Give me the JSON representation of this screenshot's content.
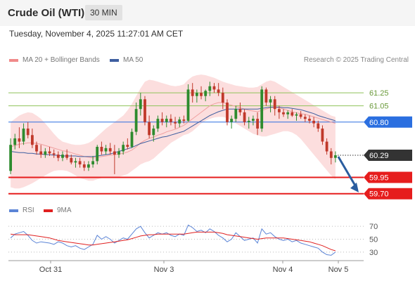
{
  "header": {
    "title": "Crude Oil (WTI)",
    "timeframe": "30 MIN",
    "datetime": "Tuesday, November 4, 2025 11:27:01 AM CET"
  },
  "legend": {
    "ma20": "MA 20 + Bollinger Bands",
    "ma50": "MA 50",
    "rsi": "RSI",
    "ma9": "9MA"
  },
  "credit": "Research © 2025 Trading Central",
  "colors": {
    "up": "#2e8b2e",
    "down": "#c0392b",
    "band": "#fbd3d3",
    "ma20": "#f0a0a0",
    "ma50": "#3e5ea0",
    "resistance": "#8fc25a",
    "pivot": "#2b6fe0",
    "support": "#e61d1d",
    "last": "#333333",
    "arrow": "#2a5d9f",
    "rsi": "#5b84d6",
    "rsi_ma": "#e02020"
  },
  "chart_data": [
    {
      "type": "candlestick",
      "instrument": "Crude Oil (WTI)",
      "interval": "30 MIN",
      "ylim": [
        59.6,
        61.65
      ],
      "x_labels": [
        "Oct 31",
        "Nov 3",
        "Nov 4",
        "Nov 5"
      ],
      "levels": [
        {
          "label": "61.25",
          "value": 61.25,
          "kind": "resistance"
        },
        {
          "label": "61.05",
          "value": 61.05,
          "kind": "resistance"
        },
        {
          "label": "60.80",
          "value": 60.8,
          "kind": "pivot"
        },
        {
          "label": "60.29",
          "value": 60.29,
          "kind": "last"
        },
        {
          "label": "59.95",
          "value": 59.95,
          "kind": "support"
        },
        {
          "label": "59.70",
          "value": 59.7,
          "kind": "support"
        }
      ],
      "ohlc": [
        [
          60.05,
          60.55,
          60.0,
          60.45
        ],
        [
          60.45,
          60.62,
          60.38,
          60.55
        ],
        [
          60.55,
          60.72,
          60.4,
          60.5
        ],
        [
          60.5,
          60.78,
          60.45,
          60.7
        ],
        [
          60.7,
          60.8,
          60.55,
          60.6
        ],
        [
          60.6,
          60.7,
          60.4,
          60.45
        ],
        [
          60.45,
          60.5,
          60.3,
          60.35
        ],
        [
          60.35,
          60.45,
          60.25,
          60.3
        ],
        [
          60.3,
          60.4,
          60.25,
          60.35
        ],
        [
          60.35,
          60.42,
          60.28,
          60.32
        ],
        [
          60.32,
          60.38,
          60.25,
          60.3
        ],
        [
          60.3,
          60.35,
          60.2,
          60.25
        ],
        [
          60.25,
          60.35,
          60.2,
          60.3
        ],
        [
          60.3,
          60.38,
          60.22,
          60.25
        ],
        [
          60.25,
          60.3,
          60.15,
          60.18
        ],
        [
          60.18,
          60.25,
          60.1,
          60.2
        ],
        [
          60.2,
          60.25,
          60.1,
          60.15
        ],
        [
          60.15,
          60.2,
          60.05,
          60.1
        ],
        [
          60.1,
          60.2,
          60.05,
          60.15
        ],
        [
          60.15,
          60.28,
          60.1,
          60.2
        ],
        [
          60.2,
          60.45,
          60.15,
          60.42
        ],
        [
          60.42,
          60.5,
          60.3,
          60.35
        ],
        [
          60.35,
          60.45,
          60.3,
          60.4
        ],
        [
          60.4,
          60.48,
          60.3,
          60.35
        ],
        [
          60.35,
          60.45,
          60.0,
          60.3
        ],
        [
          60.3,
          60.4,
          60.25,
          60.35
        ],
        [
          60.35,
          60.5,
          60.3,
          60.45
        ],
        [
          60.45,
          60.55,
          60.38,
          60.42
        ],
        [
          60.42,
          60.7,
          60.4,
          60.65
        ],
        [
          60.65,
          61.1,
          60.6,
          61.0
        ],
        [
          61.0,
          61.25,
          60.9,
          61.15
        ],
        [
          61.15,
          61.2,
          60.75,
          60.8
        ],
        [
          60.8,
          60.9,
          60.55,
          60.6
        ],
        [
          60.6,
          60.75,
          60.5,
          60.7
        ],
        [
          60.7,
          60.9,
          60.65,
          60.85
        ],
        [
          60.85,
          60.95,
          60.75,
          60.8
        ],
        [
          60.8,
          60.9,
          60.72,
          60.85
        ],
        [
          60.85,
          60.92,
          60.75,
          60.8
        ],
        [
          60.8,
          60.88,
          60.7,
          60.78
        ],
        [
          60.78,
          60.88,
          60.72,
          60.84
        ],
        [
          60.84,
          60.9,
          60.78,
          60.82
        ],
        [
          60.82,
          61.38,
          60.8,
          61.3
        ],
        [
          61.3,
          61.4,
          61.1,
          61.2
        ],
        [
          61.2,
          61.3,
          61.1,
          61.25
        ],
        [
          61.25,
          61.35,
          61.15,
          61.2
        ],
        [
          61.2,
          61.3,
          61.12,
          61.28
        ],
        [
          61.28,
          61.42,
          61.2,
          61.35
        ],
        [
          61.35,
          61.4,
          61.25,
          61.3
        ],
        [
          61.3,
          61.4,
          61.2,
          61.25
        ],
        [
          61.25,
          61.33,
          61.0,
          61.1
        ],
        [
          61.1,
          61.15,
          60.75,
          60.8
        ],
        [
          60.8,
          60.9,
          60.7,
          60.85
        ],
        [
          60.85,
          61.05,
          60.8,
          61.0
        ],
        [
          61.0,
          61.1,
          60.9,
          60.95
        ],
        [
          60.95,
          61.0,
          60.75,
          60.8
        ],
        [
          60.8,
          60.88,
          60.7,
          60.82
        ],
        [
          60.82,
          60.9,
          60.75,
          60.85
        ],
        [
          60.85,
          60.95,
          60.6,
          60.7
        ],
        [
          60.7,
          61.35,
          60.65,
          61.3
        ],
        [
          61.3,
          61.33,
          61.05,
          61.1
        ],
        [
          61.1,
          61.2,
          60.95,
          61.15
        ],
        [
          61.15,
          61.2,
          60.9,
          61.0
        ],
        [
          61.0,
          61.05,
          60.85,
          60.95
        ],
        [
          60.95,
          61.0,
          60.88,
          60.92
        ],
        [
          60.92,
          60.98,
          60.85,
          60.95
        ],
        [
          60.95,
          61.0,
          60.88,
          60.9
        ],
        [
          60.9,
          60.95,
          60.82,
          60.92
        ],
        [
          60.92,
          60.97,
          60.85,
          60.88
        ],
        [
          60.88,
          60.92,
          60.8,
          60.85
        ],
        [
          60.85,
          60.9,
          60.78,
          60.82
        ],
        [
          60.82,
          60.88,
          60.72,
          60.78
        ],
        [
          60.78,
          60.82,
          60.65,
          60.7
        ],
        [
          60.7,
          60.75,
          60.45,
          60.5
        ],
        [
          60.5,
          60.55,
          60.3,
          60.35
        ],
        [
          60.35,
          60.4,
          60.15,
          60.25
        ],
        [
          60.25,
          60.35,
          60.18,
          60.29
        ]
      ],
      "ma20": [
        60.42,
        60.44,
        60.46,
        60.47,
        60.48,
        60.48,
        60.47,
        60.46,
        60.44,
        60.42,
        60.4,
        60.38,
        60.36,
        60.35,
        60.33,
        60.31,
        60.29,
        60.27,
        60.26,
        60.25,
        60.26,
        60.27,
        60.28,
        60.29,
        60.3,
        60.31,
        60.32,
        60.34,
        60.37,
        60.42,
        60.48,
        60.52,
        60.55,
        60.57,
        60.6,
        60.62,
        60.65,
        60.67,
        60.69,
        60.72,
        60.75,
        60.8,
        60.85,
        60.9,
        60.95,
        61.0,
        61.05,
        61.08,
        61.1,
        61.1,
        61.08,
        61.06,
        61.04,
        61.02,
        61.0,
        60.98,
        60.97,
        60.96,
        60.98,
        61.0,
        61.02,
        61.03,
        61.02,
        61.0,
        60.98,
        60.96,
        60.94,
        60.93,
        60.92,
        60.9,
        60.88,
        60.86,
        60.84,
        60.82,
        60.8,
        60.78
      ],
      "bb_upper": [
        60.8,
        60.85,
        60.9,
        60.93,
        60.95,
        60.94,
        60.9,
        60.85,
        60.78,
        60.7,
        60.62,
        60.55,
        60.5,
        60.48,
        60.46,
        60.45,
        60.45,
        60.46,
        60.48,
        60.52,
        60.58,
        60.64,
        60.7,
        60.75,
        60.8,
        60.85,
        60.9,
        60.98,
        61.08,
        61.2,
        61.32,
        61.42,
        61.45,
        61.44,
        61.42,
        61.4,
        61.38,
        61.36,
        61.35,
        61.36,
        61.38,
        61.45,
        61.5,
        61.52,
        61.53,
        61.52,
        61.5,
        61.48,
        61.45,
        61.42,
        61.4,
        61.38,
        61.36,
        61.35,
        61.34,
        61.33,
        61.33,
        61.34,
        61.38,
        61.42,
        61.44,
        61.42,
        61.38,
        61.34,
        61.3,
        61.26,
        61.22,
        61.18,
        61.14,
        61.1,
        61.06,
        61.02,
        60.98,
        60.94,
        60.9,
        60.88
      ],
      "bb_lower": [
        59.8,
        59.78,
        59.78,
        59.8,
        59.83,
        59.86,
        59.9,
        59.94,
        59.98,
        60.02,
        60.05,
        60.06,
        60.06,
        60.05,
        60.02,
        59.98,
        59.94,
        59.92,
        59.9,
        59.9,
        59.92,
        59.94,
        59.96,
        59.96,
        59.95,
        59.96,
        59.98,
        60.0,
        60.05,
        60.1,
        60.15,
        60.18,
        60.2,
        60.24,
        60.3,
        60.36,
        60.42,
        60.48,
        60.52,
        60.56,
        60.6,
        60.62,
        60.66,
        60.72,
        60.78,
        60.82,
        60.85,
        60.87,
        60.88,
        60.88,
        60.86,
        60.82,
        60.78,
        60.74,
        60.7,
        60.66,
        60.62,
        60.6,
        60.58,
        60.58,
        60.6,
        60.62,
        60.64,
        60.66,
        60.66,
        60.64,
        60.6,
        60.54,
        60.46,
        60.38,
        60.3,
        60.22,
        60.14,
        60.06,
        59.98,
        59.92
      ],
      "ma50": [
        60.35,
        60.34,
        60.33,
        60.33,
        60.32,
        60.32,
        60.31,
        60.31,
        60.3,
        60.3,
        60.29,
        60.29,
        60.28,
        60.28,
        60.28,
        60.28,
        60.27,
        60.27,
        60.27,
        60.27,
        60.28,
        60.29,
        60.3,
        60.31,
        60.33,
        60.35,
        60.37,
        60.39,
        60.41,
        60.44,
        60.47,
        60.49,
        60.51,
        60.53,
        60.55,
        60.57,
        60.58,
        60.6,
        60.62,
        60.64,
        60.66,
        60.7,
        60.74,
        60.78,
        60.82,
        60.86,
        60.9,
        60.93,
        60.96,
        60.98,
        61.0,
        61.0,
        61.0,
        61.0,
        61.0,
        61.0,
        61.0,
        61.0,
        61.01,
        61.02,
        61.03,
        61.03,
        61.03,
        61.02,
        61.02,
        61.01,
        61.0,
        60.99,
        60.97,
        60.95,
        60.93,
        60.9,
        60.88,
        60.86,
        60.84,
        60.82
      ]
    },
    {
      "type": "line",
      "title": "RSI",
      "ylim": [
        20,
        80
      ],
      "ticks": [
        70,
        50,
        30
      ],
      "series": [
        {
          "name": "RSI",
          "values": [
            52,
            58,
            60,
            62,
            56,
            48,
            44,
            46,
            45,
            44,
            42,
            46,
            44,
            40,
            38,
            40,
            36,
            34,
            38,
            42,
            56,
            50,
            54,
            50,
            44,
            48,
            52,
            50,
            58,
            66,
            70,
            60,
            52,
            56,
            60,
            58,
            60,
            56,
            54,
            58,
            56,
            72,
            68,
            62,
            64,
            60,
            66,
            62,
            56,
            52,
            46,
            50,
            60,
            54,
            48,
            50,
            52,
            44,
            66,
            58,
            60,
            54,
            50,
            48,
            50,
            46,
            48,
            44,
            42,
            40,
            38,
            36,
            30,
            26,
            25,
            30
          ]
        },
        {
          "name": "9MA",
          "values": [
            58,
            57,
            57,
            57,
            57,
            56,
            55,
            54,
            53,
            52,
            50,
            48,
            47,
            46,
            45,
            44,
            43,
            42,
            41,
            41,
            42,
            43,
            44,
            45,
            46,
            47,
            48,
            49,
            51,
            53,
            55,
            56,
            57,
            57,
            58,
            58,
            58,
            58,
            58,
            58,
            58,
            59,
            60,
            61,
            61,
            61,
            61,
            61,
            60,
            59,
            57,
            56,
            55,
            54,
            53,
            52,
            51,
            50,
            51,
            52,
            52,
            52,
            52,
            52,
            51,
            50,
            49,
            48,
            47,
            46,
            44,
            42,
            40,
            37,
            34,
            32
          ]
        }
      ]
    }
  ]
}
